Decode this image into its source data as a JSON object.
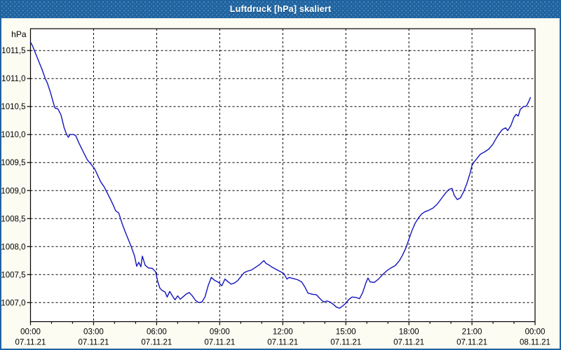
{
  "window": {
    "title": "Luftdruck [hPa] skaliert",
    "titlebar_color": "#1f63a0",
    "border_color": "#1f63a0",
    "background_color": "#fcfcf2",
    "plot_background": "#ffffff",
    "grid_color": "#000000",
    "text_color": "#000000"
  },
  "chart_data": {
    "type": "line",
    "title": "Luftdruck [hPa] skaliert",
    "grid": "dashed",
    "legend": "none",
    "y_axis": {
      "unit": "hPa",
      "min": 1006.66,
      "max": 1011.89,
      "ticks": [
        {
          "value": 1011.5,
          "label": "1011,5"
        },
        {
          "value": 1011.0,
          "label": "1011,0"
        },
        {
          "value": 1010.5,
          "label": "1010,5"
        },
        {
          "value": 1010.0,
          "label": "1010,0"
        },
        {
          "value": 1009.5,
          "label": "1009,5"
        },
        {
          "value": 1009.0,
          "label": "1009,0"
        },
        {
          "value": 1008.5,
          "label": "1008,5"
        },
        {
          "value": 1008.0,
          "label": "1008,0"
        },
        {
          "value": 1007.5,
          "label": "1007,5"
        },
        {
          "value": 1007.0,
          "label": "1007,0"
        }
      ]
    },
    "x_axis": {
      "min_hours": 0,
      "max_hours": 24,
      "minor_tick_every_hours": 1,
      "ticks": [
        {
          "hours": 0,
          "time": "00:00",
          "date": "07.11.21"
        },
        {
          "hours": 3,
          "time": "03:00",
          "date": "07.11.21"
        },
        {
          "hours": 6,
          "time": "06:00",
          "date": "07.11.21"
        },
        {
          "hours": 9,
          "time": "09:00",
          "date": "07.11.21"
        },
        {
          "hours": 12,
          "time": "12:00",
          "date": "07.11.21"
        },
        {
          "hours": 15,
          "time": "15:00",
          "date": "07.11.21"
        },
        {
          "hours": 18,
          "time": "18:00",
          "date": "07.11.21"
        },
        {
          "hours": 21,
          "time": "21:00",
          "date": "07.11.21"
        },
        {
          "hours": 24,
          "time": "00:00",
          "date": "08.11.21"
        }
      ]
    },
    "series": [
      {
        "name": "Luftdruck",
        "color": "#1515bd",
        "points": [
          [
            0.0,
            1011.65
          ],
          [
            0.1,
            1011.58
          ],
          [
            0.25,
            1011.44
          ],
          [
            0.4,
            1011.3
          ],
          [
            0.55,
            1011.16
          ],
          [
            0.7,
            1011.0
          ],
          [
            0.8,
            1010.92
          ],
          [
            0.95,
            1010.75
          ],
          [
            1.1,
            1010.55
          ],
          [
            1.17,
            1010.47
          ],
          [
            1.3,
            1010.46
          ],
          [
            1.45,
            1010.35
          ],
          [
            1.6,
            1010.12
          ],
          [
            1.72,
            1010.0
          ],
          [
            1.8,
            1009.95
          ],
          [
            1.88,
            1010.0
          ],
          [
            2.05,
            1010.0
          ],
          [
            2.15,
            1009.98
          ],
          [
            2.3,
            1009.85
          ],
          [
            2.5,
            1009.7
          ],
          [
            2.7,
            1009.55
          ],
          [
            2.9,
            1009.46
          ],
          [
            3.05,
            1009.39
          ],
          [
            3.2,
            1009.27
          ],
          [
            3.35,
            1009.15
          ],
          [
            3.5,
            1009.07
          ],
          [
            3.65,
            1008.96
          ],
          [
            3.8,
            1008.85
          ],
          [
            3.95,
            1008.73
          ],
          [
            4.05,
            1008.64
          ],
          [
            4.2,
            1008.6
          ],
          [
            4.35,
            1008.42
          ],
          [
            4.5,
            1008.27
          ],
          [
            4.65,
            1008.13
          ],
          [
            4.8,
            1007.99
          ],
          [
            4.95,
            1007.83
          ],
          [
            5.05,
            1007.65
          ],
          [
            5.15,
            1007.72
          ],
          [
            5.25,
            1007.64
          ],
          [
            5.32,
            1007.83
          ],
          [
            5.45,
            1007.67
          ],
          [
            5.6,
            1007.62
          ],
          [
            5.8,
            1007.61
          ],
          [
            5.95,
            1007.55
          ],
          [
            6.05,
            1007.38
          ],
          [
            6.15,
            1007.26
          ],
          [
            6.25,
            1007.22
          ],
          [
            6.4,
            1007.19
          ],
          [
            6.5,
            1007.1
          ],
          [
            6.62,
            1007.2
          ],
          [
            6.75,
            1007.12
          ],
          [
            6.87,
            1007.05
          ],
          [
            7.0,
            1007.12
          ],
          [
            7.12,
            1007.06
          ],
          [
            7.25,
            1007.1
          ],
          [
            7.4,
            1007.15
          ],
          [
            7.55,
            1007.18
          ],
          [
            7.7,
            1007.12
          ],
          [
            7.85,
            1007.04
          ],
          [
            8.0,
            1007.0
          ],
          [
            8.15,
            1007.01
          ],
          [
            8.3,
            1007.1
          ],
          [
            8.45,
            1007.3
          ],
          [
            8.6,
            1007.45
          ],
          [
            8.75,
            1007.4
          ],
          [
            8.95,
            1007.36
          ],
          [
            9.1,
            1007.3
          ],
          [
            9.25,
            1007.42
          ],
          [
            9.4,
            1007.37
          ],
          [
            9.55,
            1007.33
          ],
          [
            9.7,
            1007.35
          ],
          [
            9.85,
            1007.39
          ],
          [
            10.0,
            1007.46
          ],
          [
            10.15,
            1007.53
          ],
          [
            10.3,
            1007.56
          ],
          [
            10.5,
            1007.58
          ],
          [
            10.7,
            1007.63
          ],
          [
            10.9,
            1007.68
          ],
          [
            11.1,
            1007.75
          ],
          [
            11.2,
            1007.7
          ],
          [
            11.35,
            1007.67
          ],
          [
            11.5,
            1007.63
          ],
          [
            11.7,
            1007.59
          ],
          [
            11.9,
            1007.55
          ],
          [
            12.05,
            1007.52
          ],
          [
            12.2,
            1007.42
          ],
          [
            12.3,
            1007.45
          ],
          [
            12.5,
            1007.43
          ],
          [
            12.7,
            1007.41
          ],
          [
            12.9,
            1007.37
          ],
          [
            13.05,
            1007.28
          ],
          [
            13.2,
            1007.17
          ],
          [
            13.4,
            1007.15
          ],
          [
            13.6,
            1007.14
          ],
          [
            13.8,
            1007.06
          ],
          [
            13.95,
            1007.01
          ],
          [
            14.1,
            1007.03
          ],
          [
            14.25,
            1007.01
          ],
          [
            14.4,
            1006.97
          ],
          [
            14.55,
            1006.92
          ],
          [
            14.7,
            1006.9
          ],
          [
            14.85,
            1006.94
          ],
          [
            15.0,
            1006.99
          ],
          [
            15.15,
            1007.06
          ],
          [
            15.3,
            1007.1
          ],
          [
            15.5,
            1007.09
          ],
          [
            15.65,
            1007.07
          ],
          [
            15.8,
            1007.18
          ],
          [
            15.95,
            1007.35
          ],
          [
            16.05,
            1007.44
          ],
          [
            16.15,
            1007.37
          ],
          [
            16.35,
            1007.36
          ],
          [
            16.55,
            1007.42
          ],
          [
            16.75,
            1007.5
          ],
          [
            16.95,
            1007.57
          ],
          [
            17.15,
            1007.62
          ],
          [
            17.35,
            1007.66
          ],
          [
            17.55,
            1007.75
          ],
          [
            17.7,
            1007.85
          ],
          [
            17.85,
            1007.97
          ],
          [
            18.0,
            1008.13
          ],
          [
            18.15,
            1008.29
          ],
          [
            18.3,
            1008.42
          ],
          [
            18.45,
            1008.51
          ],
          [
            18.6,
            1008.58
          ],
          [
            18.75,
            1008.62
          ],
          [
            18.95,
            1008.65
          ],
          [
            19.15,
            1008.69
          ],
          [
            19.35,
            1008.76
          ],
          [
            19.55,
            1008.86
          ],
          [
            19.75,
            1008.96
          ],
          [
            19.9,
            1009.02
          ],
          [
            20.05,
            1009.04
          ],
          [
            20.15,
            1008.92
          ],
          [
            20.3,
            1008.84
          ],
          [
            20.45,
            1008.87
          ],
          [
            20.6,
            1008.98
          ],
          [
            20.75,
            1009.12
          ],
          [
            20.9,
            1009.3
          ],
          [
            21.0,
            1009.45
          ],
          [
            21.1,
            1009.51
          ],
          [
            21.25,
            1009.58
          ],
          [
            21.4,
            1009.65
          ],
          [
            21.6,
            1009.69
          ],
          [
            21.8,
            1009.74
          ],
          [
            22.0,
            1009.83
          ],
          [
            22.15,
            1009.93
          ],
          [
            22.3,
            1010.02
          ],
          [
            22.45,
            1010.09
          ],
          [
            22.6,
            1010.12
          ],
          [
            22.7,
            1010.07
          ],
          [
            22.85,
            1010.16
          ],
          [
            23.0,
            1010.31
          ],
          [
            23.1,
            1010.36
          ],
          [
            23.2,
            1010.33
          ],
          [
            23.3,
            1010.45
          ],
          [
            23.45,
            1010.5
          ],
          [
            23.55,
            1010.5
          ],
          [
            23.62,
            1010.53
          ],
          [
            23.7,
            1010.59
          ],
          [
            23.78,
            1010.66
          ]
        ]
      }
    ]
  }
}
